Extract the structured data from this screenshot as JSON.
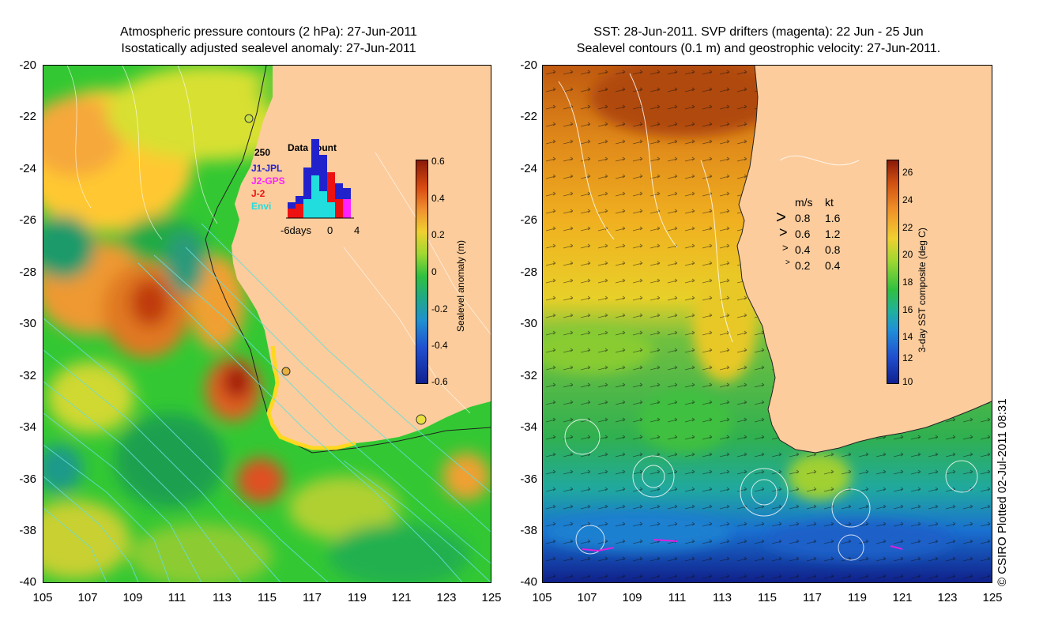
{
  "left_panel": {
    "title_line1": "Atmospheric pressure contours (2 hPa): 27-Jun-2011",
    "title_line2": "Isostatically adjusted sealevel anomaly: 27-Jun-2011",
    "y_ticks": [
      "-20",
      "-22",
      "-24",
      "-26",
      "-28",
      "-30",
      "-32",
      "-34",
      "-36",
      "-38",
      "-40"
    ],
    "x_ticks": [
      "105",
      "107",
      "109",
      "111",
      "113",
      "115",
      "117",
      "119",
      "121",
      "123",
      "125"
    ],
    "colorbar": {
      "label": "Sealevel anomaly (m)",
      "ticks": [
        "0.6",
        "0.4",
        "0.2",
        "0",
        "-0.2",
        "-0.4",
        "-0.6"
      ]
    },
    "histogram": {
      "title": "Data count",
      "max_label": "250",
      "x_labels": [
        "-6days",
        "0",
        "4"
      ],
      "missions": [
        {
          "name": "J1-JPL",
          "color": "#2222cc"
        },
        {
          "name": "J2-GPS",
          "color": "#ff22ff"
        },
        {
          "name": "J-2",
          "color": "#ee1111"
        },
        {
          "name": "Envi",
          "color": "#22dddd"
        }
      ]
    }
  },
  "right_panel": {
    "title_line1": "SST: 28-Jun-2011. SVP drifters (magenta): 22 Jun - 25 Jun",
    "title_line2": "Sealevel contours (0.1 m) and geostrophic velocity: 27-Jun-2011.",
    "y_ticks": [
      "-20",
      "-22",
      "-24",
      "-26",
      "-28",
      "-30",
      "-32",
      "-34",
      "-36",
      "-38",
      "-40"
    ],
    "x_ticks": [
      "105",
      "107",
      "109",
      "111",
      "113",
      "115",
      "117",
      "119",
      "121",
      "123",
      "125"
    ],
    "colorbar": {
      "label": "3-day SST composite (deg C)",
      "ticks": [
        "26",
        "24",
        "22",
        "20",
        "18",
        "16",
        "14",
        "12",
        "10"
      ]
    },
    "velocity_legend": {
      "header_ms": "m/s",
      "header_kt": "kt",
      "rows": [
        {
          "ms": "0.8",
          "kt": "1.6"
        },
        {
          "ms": "0.6",
          "kt": "1.2"
        },
        {
          "ms": "0.4",
          "kt": "0.8"
        },
        {
          "ms": "0.2",
          "kt": "0.4"
        }
      ]
    }
  },
  "credit": "© CSIRO Plotted 02-Jul-2011 08:31",
  "colors": {
    "land": "#fccc9c",
    "contour_left": "#66dddd",
    "contour_right": "#ffffff"
  }
}
